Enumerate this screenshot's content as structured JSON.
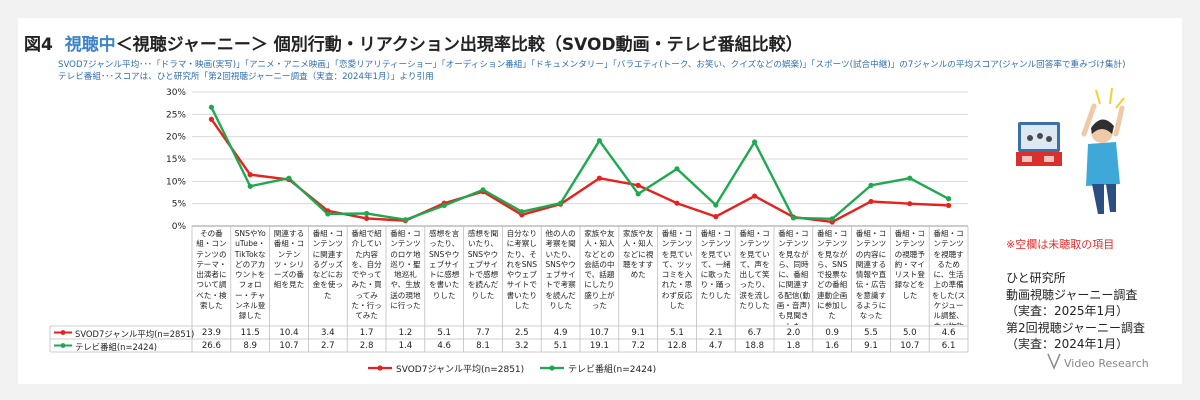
{
  "header": {
    "fig_label": "図4",
    "title_highlight": "視聴中",
    "title_rest": "＜視聴ジャーニー＞ 個別行動・リアクション出現率比較（SVOD動画・テレビ番組比較）",
    "subtitle_1": "SVOD7ジャンル平均･･･「ドラマ・映画(実写)」「アニメ・アニメ映画」「恋愛リアリティーショー」「オーディション番組」「ドキュメンタリー」「バラエティ(トーク、お笑い、クイズなどの娯楽)」「スポーツ(試合中継)」の7ジャンルの平均スコア(ジャンル回答率で重みづけ集計)",
    "subtitle_2": "テレビ番組･･･スコアは、ひと研究所「第2回視聴ジャーニー調査（実査：2024年1月）」より引用"
  },
  "chart_data": {
    "type": "line",
    "ylim": [
      0,
      30
    ],
    "yticks": [
      "0%",
      "5%",
      "10%",
      "15%",
      "20%",
      "25%",
      "30%"
    ],
    "grid": true,
    "legend_position": "bottom",
    "categories": [
      "その番組・コンテンツのテーマ・出演者について調べた・検索した",
      "SNSやYouTube・TikTokなどのアカウントをフォロー・チャンネル登録した",
      "関連する番組・コンテンツ・シリーズの番組を見た",
      "番組・コンテンツに関連するグッズなどにお金を使った",
      "番組で紹介していた内容を、自分でやってみた・買ってみた・行ってみた",
      "番組・コンテンツのロケ地巡り・聖地巡礼や、生放送の現地に行った",
      "感想を言ったり、SNSやウェブサイトに感想を書いたりした",
      "感想を聞いたり、SNSやウェブサイトで感想を読んだりした",
      "自分なりに考察したり、それをSNSやウェブサイトで書いたりした",
      "他の人の考察を聞いたり、SNSやウェブサイトで考察を読んだりした",
      "家族や友人・知人などとの会話の中で、話題にしたり盛り上がった",
      "家族や友人・知人などに視聴をすすめた",
      "番組・コンテンツを見ていて、ツッコミを入れた・思わず反応した",
      "番組・コンテンツを見ていて、一緒に歌ったり・踊ったりした",
      "番組・コンテンツを見ていて、声を出して笑ったり、涙を流したりした",
      "番組・コンテンツを見ながら、同時に、番組に関連する配信(動画・音声)も見聞きした",
      "番組・コンテンツを見ながら、SNSで投票などの番組連動企画に参加した",
      "番組・コンテンツの内容に関連する情報や直伝・広告を意識するようになった",
      "番組・コンテンツの視聴予約・マイリスト登録などをした",
      "番組・コンテンツを視聴するために、生活上の準備をした(スケジュール調整、食べ物飲み物購入など)"
    ],
    "series": [
      {
        "name": "SVOD7ジャンル平均(n=2851)",
        "color": "#e8201e",
        "values": [
          23.9,
          11.5,
          10.4,
          3.4,
          1.7,
          1.2,
          5.1,
          7.7,
          2.5,
          4.9,
          10.7,
          9.1,
          5.1,
          2.1,
          6.7,
          2.0,
          0.9,
          5.5,
          5.0,
          4.6
        ],
        "labels": [
          "23.9",
          "11.5",
          "10.4",
          "3.4",
          "1.7",
          "1.2",
          "5.1",
          "7.7",
          "2.5",
          "4.9",
          "10.7",
          "9.1",
          "5.1",
          "2.1",
          "6.7",
          "2.0",
          "0.9",
          "5.5",
          "5.0",
          "4.6"
        ]
      },
      {
        "name": "テレビ番組(n=2424)",
        "color": "#1ea84f",
        "values": [
          26.6,
          8.9,
          10.7,
          2.7,
          2.8,
          1.4,
          4.6,
          8.1,
          3.2,
          5.1,
          19.1,
          7.2,
          12.8,
          4.7,
          18.8,
          1.8,
          1.6,
          9.1,
          10.7,
          6.1
        ],
        "labels": [
          "26.6",
          "8.9",
          "10.7",
          "2.7",
          "2.8",
          "1.4",
          "4.6",
          "8.1",
          "3.2",
          "5.1",
          "19.1",
          "7.2",
          "12.8",
          "4.7",
          "18.8",
          "1.8",
          "1.6",
          "9.1",
          "10.7",
          "6.1"
        ]
      }
    ]
  },
  "side": {
    "note": "※空欄は未聴取の項目",
    "source_lines": [
      "ひと研究所",
      "動画視聴ジャーニー調査",
      "（実査：2025年1月）",
      "第2回視聴ジャーニー調査",
      "（実査：2024年1月）"
    ],
    "logo": "Video Research"
  }
}
